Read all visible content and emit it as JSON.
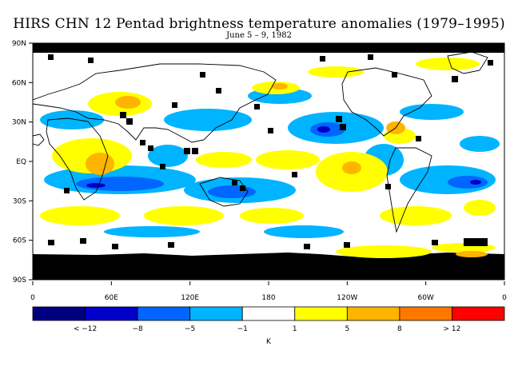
{
  "title": "HIRS CHN 12 Pentad brightness temperature anomalies (1979–1995)",
  "subtitle": "June 5 – 9, 1982",
  "lat_labels": [
    "90N",
    "60N",
    "30N",
    "EQ",
    "30S",
    "60S",
    "90S"
  ],
  "lon_labels": [
    "0",
    "60E",
    "120E",
    "180",
    "120W",
    "60W",
    "0"
  ],
  "colorbar": {
    "colors": [
      "#000080",
      "#0000c8",
      "#0066ff",
      "#00b4ff",
      "#ffffff",
      "#ffff00",
      "#ffb400",
      "#ff7800",
      "#ff0000"
    ],
    "tick_labels": [
      "< −12",
      "−8",
      "−5",
      "−1",
      "1",
      "5",
      "8",
      "> 12"
    ],
    "unit": "K"
  },
  "missing_color": "#000000"
}
